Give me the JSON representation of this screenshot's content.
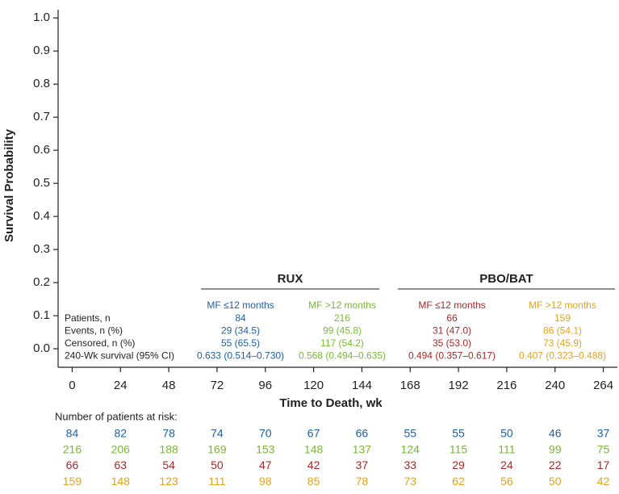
{
  "chart_data": {
    "type": "survival",
    "ylabel": "Survival Probability",
    "xlabel": "Time to Death, wk",
    "ylim": [
      -0.056,
      1.025
    ],
    "yticks": [
      {
        "value": 0,
        "label": "0.0"
      },
      0.1,
      0.2,
      0.3,
      0.4,
      0.5,
      0.6,
      0.7,
      0.8,
      0.9,
      {
        "value": 1,
        "label": "1.0"
      }
    ],
    "xlim": [
      -7,
      271
    ],
    "xticks": [
      0,
      24,
      48,
      72,
      96,
      120,
      144,
      168,
      192,
      216,
      240,
      264
    ],
    "summary": {
      "groups": [
        {
          "name": "RUX",
          "columns": [
            0,
            1
          ]
        },
        {
          "name": "PBO/BAT",
          "columns": [
            2,
            3
          ]
        }
      ],
      "columns": [
        {
          "label": "MF ≤12 months",
          "color": "#1f5fa0"
        },
        {
          "label": "MF >12 months",
          "color": "#78b834"
        },
        {
          "label": "MF ≤12 months",
          "color": "#a32a2a"
        },
        {
          "label": "MF >12 months",
          "color": "#e2a21c"
        }
      ],
      "row_labels": [
        "Patients, n",
        "Events, n (%)",
        "Censored, n (%)",
        "240-Wk survival (95% CI)"
      ],
      "rows": [
        [
          84,
          216,
          66,
          159
        ],
        [
          "29 (34.5)",
          "99 (45.8)",
          "31 (47.0)",
          "86 (54.1)"
        ],
        [
          "55 (65.5)",
          "117 (54.2)",
          "35 (53.0)",
          "73 (45.9)"
        ],
        [
          "0.633 (0.514–0.730)",
          "0.568 (0.494–0.635)",
          "0.494 (0.357–0.617)",
          "0.407 (0.323–0.488)"
        ]
      ]
    },
    "at_risk": {
      "title": "Number of patients at risk:",
      "series": [
        {
          "color": "#1f5fa0",
          "values": [
            84,
            82,
            78,
            74,
            70,
            67,
            66,
            55,
            55,
            50,
            46,
            37
          ]
        },
        {
          "color": "#78b834",
          "values": [
            216,
            206,
            188,
            169,
            153,
            148,
            137,
            124,
            115,
            111,
            99,
            75
          ]
        },
        {
          "color": "#a32a2a",
          "values": [
            66,
            63,
            54,
            50,
            47,
            42,
            37,
            33,
            29,
            24,
            22,
            17
          ]
        },
        {
          "color": "#e2a21c",
          "values": [
            159,
            148,
            123,
            111,
            98,
            85,
            78,
            73,
            62,
            56,
            50,
            42
          ]
        }
      ]
    }
  }
}
